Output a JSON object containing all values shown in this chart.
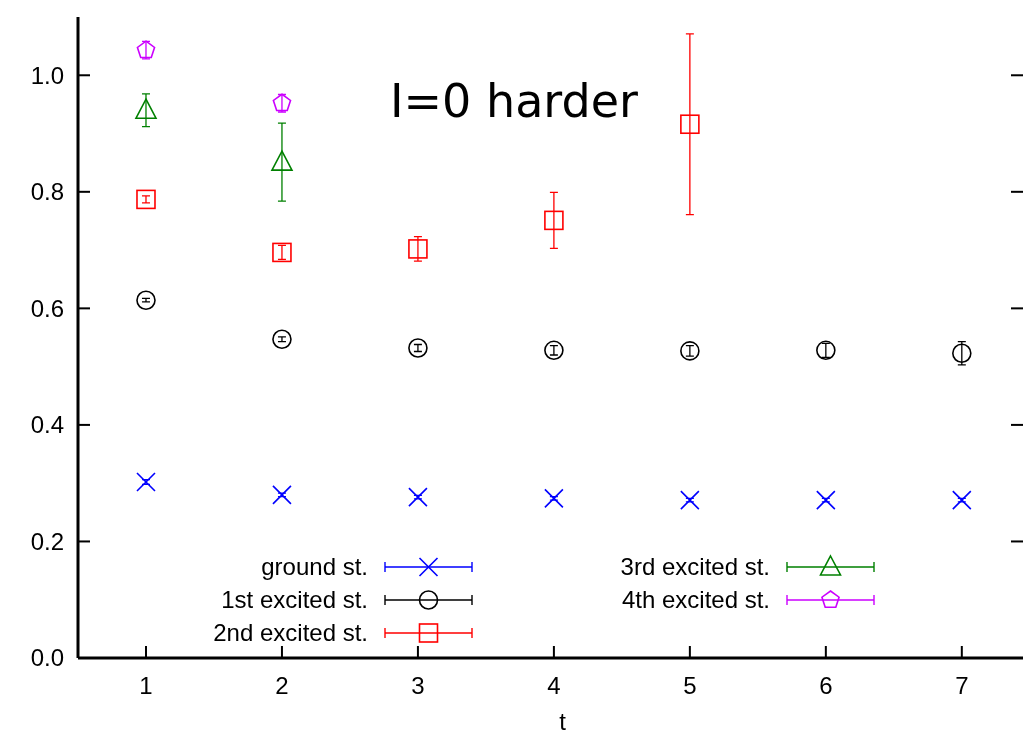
{
  "chart_data": {
    "type": "scatter",
    "xlabel": "t",
    "annotations": [
      "I=0 harder"
    ],
    "x": [
      1,
      2,
      3,
      4,
      5,
      6,
      7
    ],
    "xlim": [
      0.5,
      7.45
    ],
    "xticks": [
      1,
      2,
      3,
      4,
      5,
      6,
      7
    ],
    "ylim": [
      0,
      1.1
    ],
    "yticks": [
      {
        "value": 0,
        "label": "0.0"
      },
      0.2,
      0.4,
      0.6,
      0.8,
      {
        "value": 1,
        "label": "1.0"
      }
    ],
    "grid": false,
    "legend": "bottom",
    "series": [
      {
        "name": "ground st.",
        "color": "#0000ff",
        "marker": "cross",
        "values": [
          0.302,
          0.28,
          0.276,
          0.274,
          0.271,
          0.271,
          0.271
        ],
        "errors": [
          0.004,
          0.003,
          0.003,
          0.003,
          0.003,
          0.003,
          0.003
        ]
      },
      {
        "name": "1st excited st.",
        "color": "#000000",
        "marker": "circle",
        "values": [
          0.614,
          0.547,
          0.532,
          0.528,
          0.527,
          0.528,
          0.523
        ],
        "errors": [
          0.003,
          0.004,
          0.006,
          0.008,
          0.009,
          0.012,
          0.02
        ]
      },
      {
        "name": "2nd excited st.",
        "color": "#ff0000",
        "marker": "square",
        "values": [
          0.787,
          0.696,
          0.702,
          0.751,
          0.916,
          null,
          null
        ],
        "errors": [
          0.006,
          0.012,
          0.021,
          0.048,
          0.155,
          null,
          null
        ]
      },
      {
        "name": "3rd excited st.",
        "color": "#008000",
        "marker": "triangle",
        "values": [
          0.94,
          0.851,
          null,
          null,
          null,
          null,
          null
        ],
        "errors": [
          0.028,
          0.067,
          null,
          null,
          null,
          null,
          null
        ]
      },
      {
        "name": "4th excited st.",
        "color": "#cc00ff",
        "values": [
          1.043,
          0.952,
          null,
          null,
          null,
          null,
          null
        ],
        "errors": [
          0.015,
          0.015,
          null,
          null,
          null,
          null,
          null
        ]
      }
    ]
  }
}
